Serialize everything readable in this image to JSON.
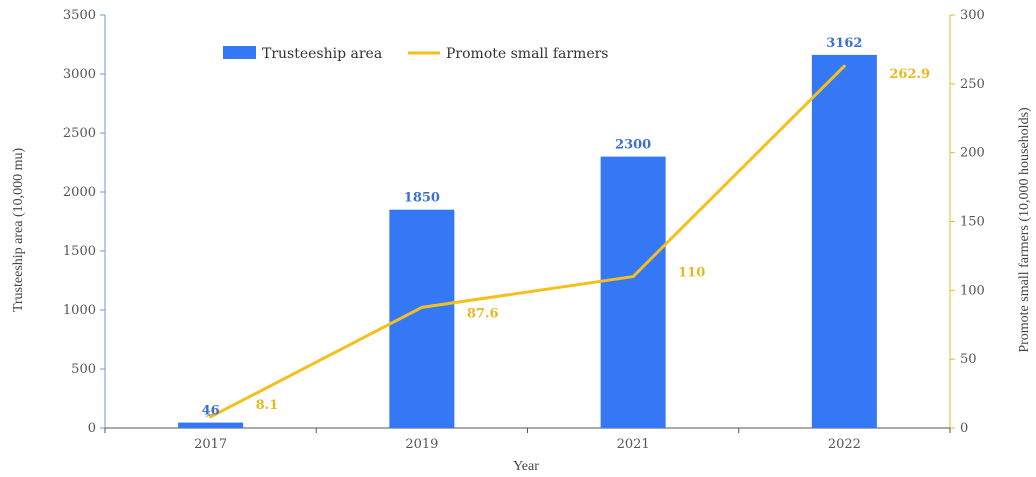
{
  "colors": {
    "bar": "#3478f6",
    "line": "#f3c01c",
    "left_axis": "#6a9bd8",
    "right_axis": "#e8b820",
    "bar_label": "#3a6fd8",
    "line_label": "#e8b820"
  },
  "chart_data": {
    "type": "bar",
    "categories": [
      "2017",
      "2019",
      "2021",
      "2022"
    ],
    "xlabel": "Year",
    "ylabel_left": "Trusteeship area (10,000 mu)",
    "ylabel_right": "Promote small farmers (10,000 households)",
    "ylim_left": [
      0,
      3500
    ],
    "yticks_left": [
      0,
      500,
      1000,
      1500,
      2000,
      2500,
      3000,
      3500
    ],
    "ylim_right": [
      0,
      300
    ],
    "yticks_right": [
      0,
      50,
      100,
      150,
      200,
      250,
      300
    ],
    "legend_position": "top-left",
    "grid": false,
    "series": [
      {
        "name": "Trusteeship area",
        "type": "bar",
        "axis": "left",
        "values": [
          46,
          1850,
          2300,
          3162
        ],
        "labels": [
          "46",
          "1850",
          "2300",
          "3162"
        ]
      },
      {
        "name": "Promote small farmers",
        "type": "line",
        "axis": "right",
        "values": [
          8.1,
          87.6,
          110,
          262.9
        ],
        "labels": [
          "8.1",
          "87.6",
          "110",
          "262.9"
        ]
      }
    ]
  }
}
